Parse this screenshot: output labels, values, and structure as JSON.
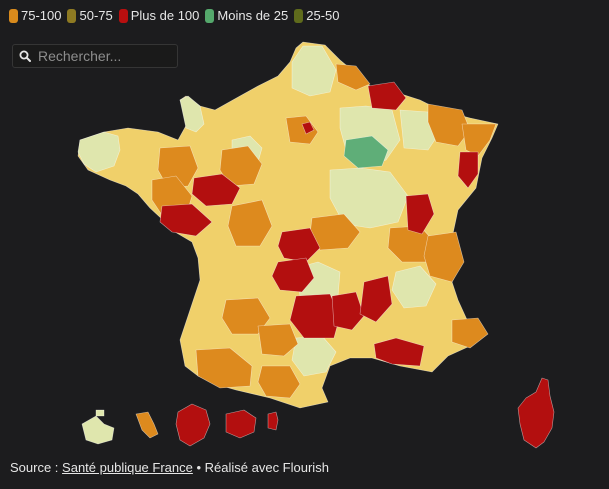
{
  "legend": {
    "items": [
      {
        "label": "75-100",
        "color": "#d88a1c"
      },
      {
        "label": "50-75",
        "color": "#8e7a22"
      },
      {
        "label": "Plus de 100",
        "color": "#b80f0f"
      },
      {
        "label": "Moins de 25",
        "color": "#55a86c"
      },
      {
        "label": "25-50",
        "color": "#5f6b1c"
      }
    ]
  },
  "search": {
    "placeholder": "Rechercher...",
    "icon": "search-icon"
  },
  "map": {
    "region": "France",
    "fill_colors": {
      "plus_de_100": "#b30f0f",
      "75_100": "#dd8a1e",
      "50_75": "#f0d06a",
      "25_50": "#dfe6ad",
      "moins_de_25": "#5fae78"
    }
  },
  "footer": {
    "prefix": "Source :",
    "source_link": "Santé publique France",
    "suffix": "• Réalisé avec Flourish"
  }
}
